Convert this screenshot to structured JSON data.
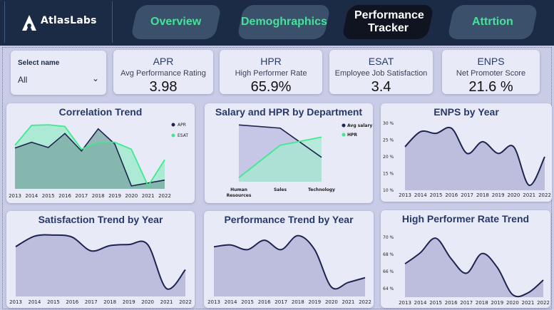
{
  "header": {
    "logo_text": "AtlasLabs",
    "tabs": [
      {
        "label": "Overview"
      },
      {
        "label": "Demoghraphics"
      },
      {
        "label": "Performance Tracker"
      },
      {
        "label": "Attrtion"
      }
    ]
  },
  "filter": {
    "label": "Select name",
    "value": "All"
  },
  "kpis": [
    {
      "title": "APR",
      "subtitle": "Avg Performance Rating",
      "value": "3.98"
    },
    {
      "title": "HPR",
      "subtitle": "High Performer Rate",
      "value": "65.9%"
    },
    {
      "title": "ESAT",
      "subtitle": "Employee Job Satisfaction",
      "value": "3.4"
    },
    {
      "title": "ENPS",
      "subtitle": "Net Promoter Score",
      "value": "21.6 %"
    }
  ],
  "colors": {
    "navy": "#1b2a45",
    "accent_green": "#3dea8e",
    "series_dark": "#1e2450",
    "fill_area": "#b5b5d8",
    "panel": "#e9eaf8"
  },
  "chart_data": [
    {
      "type": "area",
      "title": "Correlation Trend",
      "x": [
        "2013",
        "2014",
        "2015",
        "2016",
        "2017",
        "2018",
        "2019",
        "2020",
        "2021",
        "2022"
      ],
      "series": [
        {
          "name": "APR",
          "values": [
            3.95,
            4.05,
            3.96,
            4.2,
            3.9,
            4.28,
            4.02,
            3.3,
            3.35,
            3.4
          ]
        },
        {
          "name": "ESAT",
          "values": [
            4.0,
            4.34,
            4.35,
            4.32,
            3.93,
            4.05,
            4.05,
            3.93,
            3.3,
            3.75
          ]
        }
      ],
      "legend": "top-right"
    },
    {
      "type": "area",
      "title": "Salary and HPR by Department",
      "categories": [
        "Human Resources",
        "Sales",
        "Technology"
      ],
      "series": [
        {
          "name": "Avg salary",
          "values": [
            100,
            96,
            60
          ]
        },
        {
          "name": "HPR",
          "values": [
            35,
            75,
            85
          ]
        }
      ],
      "legend": "top-right"
    },
    {
      "type": "area",
      "title": "ENPS by Year",
      "x": [
        "2013",
        "2014",
        "2015",
        "2016",
        "2017",
        "2018",
        "2019",
        "2020",
        "2021",
        "2022"
      ],
      "yticks": [
        "10 %",
        "15 %",
        "20 %",
        "25 %",
        "30 %"
      ],
      "ylim": [
        10,
        30
      ],
      "values": [
        23,
        27.5,
        27,
        28.5,
        21,
        24.5,
        21,
        23,
        11.5,
        20
      ]
    },
    {
      "type": "area",
      "title": "Satisfaction Trend by Year",
      "x": [
        "2013",
        "2014",
        "2015",
        "2016",
        "2017",
        "2018",
        "2019",
        "2020",
        "2021",
        "2022"
      ],
      "values": [
        3.8,
        4.0,
        4.02,
        3.98,
        3.72,
        3.82,
        3.84,
        3.84,
        3.0,
        3.36
      ]
    },
    {
      "type": "area",
      "title": "Performance Trend by Year",
      "x": [
        "2013",
        "2014",
        "2015",
        "2016",
        "2017",
        "2018",
        "2019",
        "2020",
        "2021",
        "2022"
      ],
      "values": [
        3.98,
        4.0,
        3.95,
        4.05,
        3.95,
        4.1,
        3.95,
        3.55,
        3.6,
        3.65
      ]
    },
    {
      "type": "area",
      "title": "High Performer Rate Trend",
      "x": [
        "2013",
        "2014",
        "2015",
        "2016",
        "2017",
        "2018",
        "2019",
        "2020",
        "2021",
        "2022"
      ],
      "yticks": [
        "64 %",
        "66 %",
        "68 %",
        "70 %"
      ],
      "ylim": [
        63,
        71
      ],
      "values": [
        66.9,
        68.2,
        69.9,
        67.5,
        65.8,
        68.1,
        66.5,
        63.3,
        63.5,
        65.0
      ]
    }
  ]
}
